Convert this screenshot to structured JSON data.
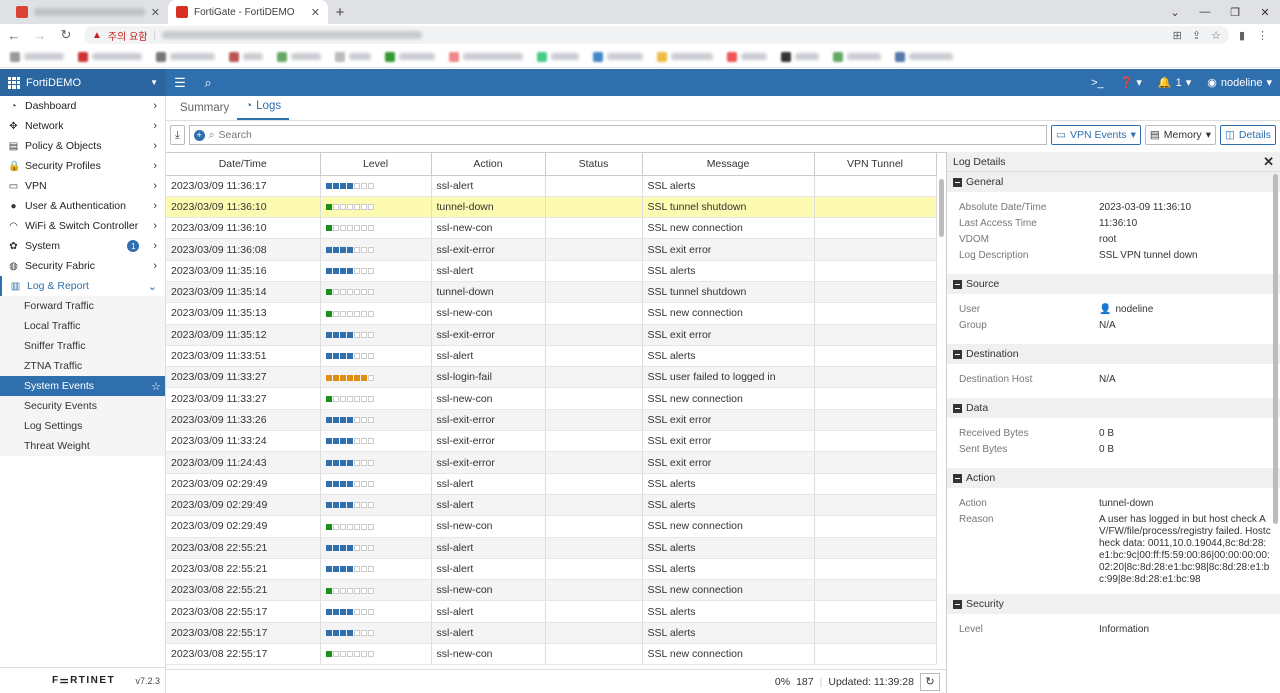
{
  "browser": {
    "tab_active_title": "FortiGate - FortiDEMO",
    "warning_label": "주의 요함",
    "new_tab": "+",
    "close_glyph": "✕"
  },
  "topbar": {
    "hostname": "FortiDEMO",
    "notification_count": "1",
    "username": "nodeline"
  },
  "sidebar": {
    "items": [
      {
        "label": "Dashboard",
        "icon": "dashboard-icon"
      },
      {
        "label": "Network",
        "icon": "network-icon"
      },
      {
        "label": "Policy & Objects",
        "icon": "policy-icon"
      },
      {
        "label": "Security Profiles",
        "icon": "lock-icon"
      },
      {
        "label": "VPN",
        "icon": "monitor-icon"
      },
      {
        "label": "User & Authentication",
        "icon": "user-icon"
      },
      {
        "label": "WiFi & Switch Controller",
        "icon": "wifi-icon"
      },
      {
        "label": "System",
        "icon": "gear-icon",
        "badge": "1"
      },
      {
        "label": "Security Fabric",
        "icon": "fabric-icon"
      },
      {
        "label": "Log & Report",
        "icon": "chart-icon"
      }
    ],
    "sub_items": [
      "Forward Traffic",
      "Local Traffic",
      "Sniffer Traffic",
      "ZTNA Traffic",
      "System Events",
      "Security Events",
      "Log Settings",
      "Threat Weight"
    ],
    "active_sub": "System Events",
    "footer_logo": "F⚌RTINET",
    "version": "v7.2.3"
  },
  "main": {
    "tabs": [
      "Summary",
      "Logs"
    ],
    "search_placeholder": "Search",
    "vpn_events_label": "VPN Events",
    "memory_label": "Memory",
    "details_label": "Details"
  },
  "log_table": {
    "columns": [
      "Date/Time",
      "Level",
      "Action",
      "Status",
      "Message",
      "VPN Tunnel"
    ],
    "rows": [
      {
        "date": "2023/03/09 11:36:17",
        "level": 4,
        "color": "blue",
        "action": "ssl-alert",
        "status": "",
        "message": "SSL alerts",
        "tunnel": ""
      },
      {
        "date": "2023/03/09 11:36:10",
        "level": 1,
        "color": "green",
        "action": "tunnel-down",
        "status": "",
        "message": "SSL tunnel shutdown",
        "tunnel": ""
      },
      {
        "date": "2023/03/09 11:36:10",
        "level": 1,
        "color": "green",
        "action": "ssl-new-con",
        "status": "",
        "message": "SSL new connection",
        "tunnel": ""
      },
      {
        "date": "2023/03/09 11:36:08",
        "level": 4,
        "color": "blue",
        "action": "ssl-exit-error",
        "status": "",
        "message": "SSL exit error",
        "tunnel": ""
      },
      {
        "date": "2023/03/09 11:35:16",
        "level": 4,
        "color": "blue",
        "action": "ssl-alert",
        "status": "",
        "message": "SSL alerts",
        "tunnel": ""
      },
      {
        "date": "2023/03/09 11:35:14",
        "level": 1,
        "color": "green",
        "action": "tunnel-down",
        "status": "",
        "message": "SSL tunnel shutdown",
        "tunnel": ""
      },
      {
        "date": "2023/03/09 11:35:13",
        "level": 1,
        "color": "green",
        "action": "ssl-new-con",
        "status": "",
        "message": "SSL new connection",
        "tunnel": ""
      },
      {
        "date": "2023/03/09 11:35:12",
        "level": 4,
        "color": "blue",
        "action": "ssl-exit-error",
        "status": "",
        "message": "SSL exit error",
        "tunnel": ""
      },
      {
        "date": "2023/03/09 11:33:51",
        "level": 4,
        "color": "blue",
        "action": "ssl-alert",
        "status": "",
        "message": "SSL alerts",
        "tunnel": ""
      },
      {
        "date": "2023/03/09 11:33:27",
        "level": 6,
        "color": "orange",
        "action": "ssl-login-fail",
        "status": "",
        "message": "SSL user failed to logged in",
        "tunnel": ""
      },
      {
        "date": "2023/03/09 11:33:27",
        "level": 1,
        "color": "green",
        "action": "ssl-new-con",
        "status": "",
        "message": "SSL new connection",
        "tunnel": ""
      },
      {
        "date": "2023/03/09 11:33:26",
        "level": 4,
        "color": "blue",
        "action": "ssl-exit-error",
        "status": "",
        "message": "SSL exit error",
        "tunnel": ""
      },
      {
        "date": "2023/03/09 11:33:24",
        "level": 4,
        "color": "blue",
        "action": "ssl-exit-error",
        "status": "",
        "message": "SSL exit error",
        "tunnel": ""
      },
      {
        "date": "2023/03/09 11:24:43",
        "level": 4,
        "color": "blue",
        "action": "ssl-exit-error",
        "status": "",
        "message": "SSL exit error",
        "tunnel": ""
      },
      {
        "date": "2023/03/09 02:29:49",
        "level": 4,
        "color": "blue",
        "action": "ssl-alert",
        "status": "",
        "message": "SSL alerts",
        "tunnel": ""
      },
      {
        "date": "2023/03/09 02:29:49",
        "level": 4,
        "color": "blue",
        "action": "ssl-alert",
        "status": "",
        "message": "SSL alerts",
        "tunnel": ""
      },
      {
        "date": "2023/03/09 02:29:49",
        "level": 1,
        "color": "green",
        "action": "ssl-new-con",
        "status": "",
        "message": "SSL new connection",
        "tunnel": ""
      },
      {
        "date": "2023/03/08 22:55:21",
        "level": 4,
        "color": "blue",
        "action": "ssl-alert",
        "status": "",
        "message": "SSL alerts",
        "tunnel": ""
      },
      {
        "date": "2023/03/08 22:55:21",
        "level": 4,
        "color": "blue",
        "action": "ssl-alert",
        "status": "",
        "message": "SSL alerts",
        "tunnel": ""
      },
      {
        "date": "2023/03/08 22:55:21",
        "level": 1,
        "color": "green",
        "action": "ssl-new-con",
        "status": "",
        "message": "SSL new connection",
        "tunnel": ""
      },
      {
        "date": "2023/03/08 22:55:17",
        "level": 4,
        "color": "blue",
        "action": "ssl-alert",
        "status": "",
        "message": "SSL alerts",
        "tunnel": ""
      },
      {
        "date": "2023/03/08 22:55:17",
        "level": 4,
        "color": "blue",
        "action": "ssl-alert",
        "status": "",
        "message": "SSL alerts",
        "tunnel": ""
      },
      {
        "date": "2023/03/08 22:55:17",
        "level": 1,
        "color": "green",
        "action": "ssl-new-con",
        "status": "",
        "message": "SSL new connection",
        "tunnel": ""
      }
    ],
    "highlighted_row": 1,
    "status_progress": "0%",
    "status_count": "187",
    "status_updated": "Updated: 11:39:28"
  },
  "details": {
    "title": "Log Details",
    "sections": [
      {
        "title": "General",
        "fields": [
          {
            "k": "Absolute Date/Time",
            "v": "2023-03-09 11:36:10"
          },
          {
            "k": "Last Access Time",
            "v": "11:36:10"
          },
          {
            "k": "VDOM",
            "v": "root"
          },
          {
            "k": "Log Description",
            "v": "SSL VPN tunnel down"
          }
        ]
      },
      {
        "title": "Source",
        "fields": [
          {
            "k": "User",
            "v": "nodeline",
            "user_icon": true
          },
          {
            "k": "Group",
            "v": "N/A"
          }
        ]
      },
      {
        "title": "Destination",
        "fields": [
          {
            "k": "Destination Host",
            "v": "N/A"
          }
        ]
      },
      {
        "title": "Data",
        "fields": [
          {
            "k": "Received Bytes",
            "v": "0 B"
          },
          {
            "k": "Sent Bytes",
            "v": "0 B"
          }
        ]
      },
      {
        "title": "Action",
        "fields": [
          {
            "k": "Action",
            "v": "tunnel-down"
          },
          {
            "k": "Reason",
            "v": "A user has logged in but host check AV/FW/file/process/registry failed. Hostcheck data: 0011,10.0.19044,8c:8d:28:e1:bc:9c|00:ff:f5:59:00:86|00:00:00:00:02:20|8c:8d:28:e1:bc:98|8c:8d:28:e1:bc:99|8e:8d:28:e1:bc:98"
          }
        ]
      },
      {
        "title": "Security",
        "fields": [
          {
            "k": "Level",
            "v": "Information"
          }
        ]
      }
    ]
  }
}
